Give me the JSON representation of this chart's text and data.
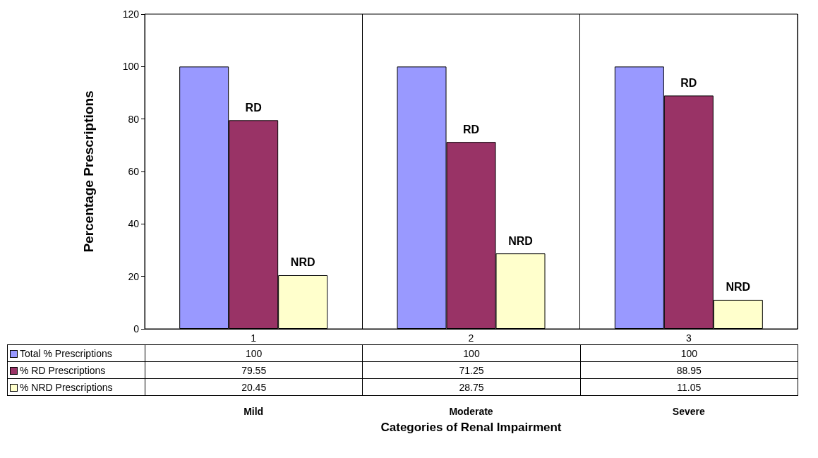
{
  "chart_data": {
    "type": "bar",
    "ylabel": "Percentage Prescriptions",
    "categories": [
      "1",
      "2",
      "3"
    ],
    "series": [
      {
        "name": "Total % Prescriptions",
        "color": "#9999ff",
        "values": [
          100,
          100,
          100
        ]
      },
      {
        "name": "% RD Prescriptions",
        "color": "#993366",
        "values": [
          79.55,
          71.25,
          88.95
        ]
      },
      {
        "name": "% NRD Prescriptions",
        "color": "#ffffcc",
        "values": [
          20.45,
          28.75,
          11.05
        ]
      }
    ],
    "ylim": [
      0,
      120
    ],
    "yticks": [
      0,
      20,
      40,
      60,
      80,
      100,
      120
    ],
    "grid": "x",
    "legend": "bottom",
    "data_labels": true,
    "annotations": [
      "RD",
      "NRD",
      "RD",
      "NRD",
      "RD",
      "NRD",
      "Mild",
      "Moderate",
      "Severe",
      "Categories of Renal Impairment"
    ]
  }
}
